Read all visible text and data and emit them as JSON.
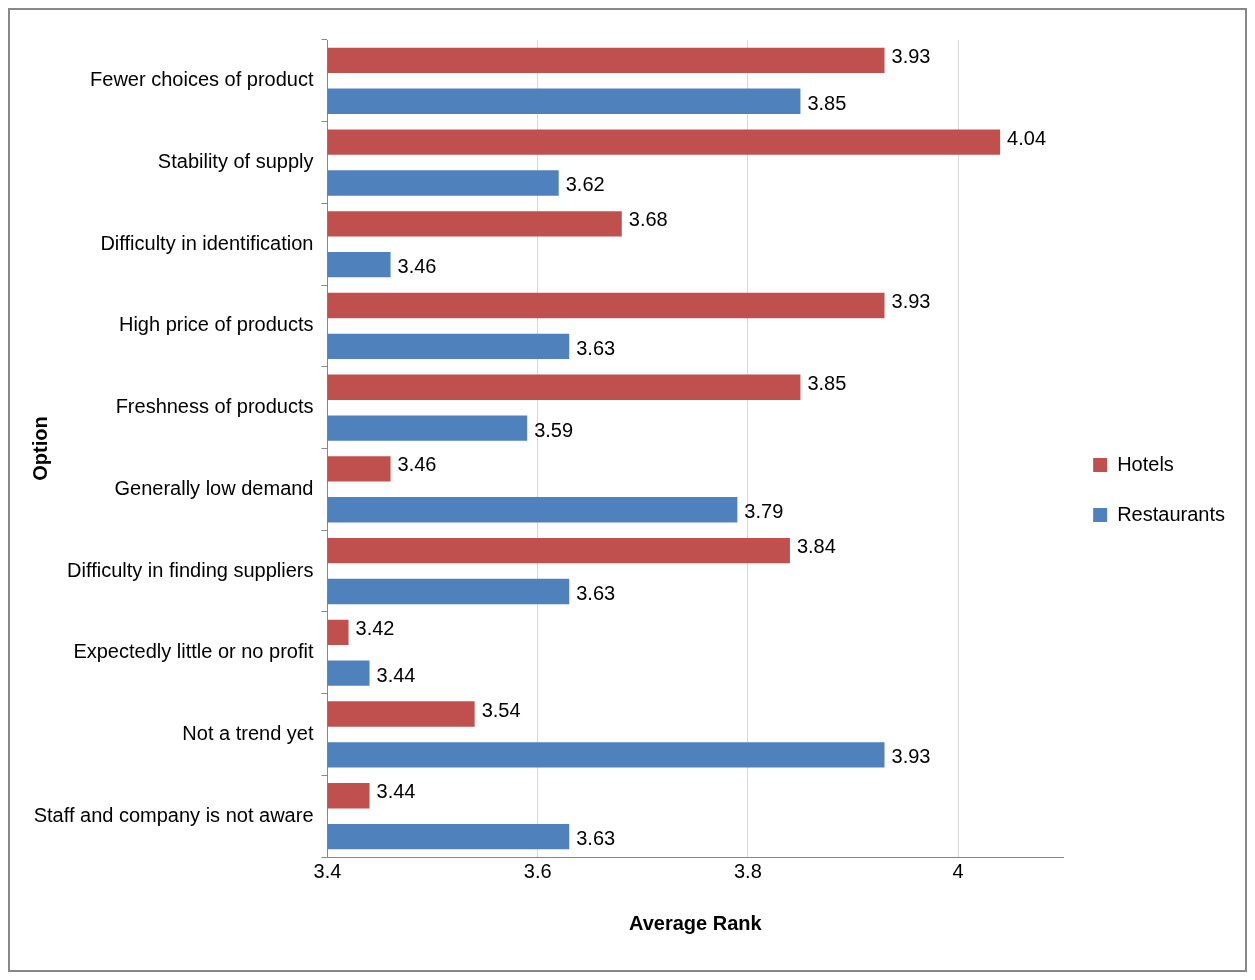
{
  "chart_data": {
    "type": "bar",
    "orientation": "horizontal",
    "xlabel": "Average Rank",
    "ylabel": "Option",
    "categories": [
      "Fewer choices of product",
      "Stability of supply",
      "Difficulty in identification",
      "High price of products",
      "Freshness of products",
      "Generally low demand",
      "Difficulty in finding suppliers",
      "Expectedly little or no profit",
      "Not a trend yet",
      "Staff and company is not aware"
    ],
    "series": [
      {
        "name": "Hotels",
        "color": "#c0504d",
        "values": [
          3.93,
          4.04,
          3.68,
          3.93,
          3.85,
          3.46,
          3.84,
          3.42,
          3.54,
          3.44
        ]
      },
      {
        "name": "Restaurants",
        "color": "#4f81bd",
        "values": [
          3.85,
          3.62,
          3.46,
          3.63,
          3.59,
          3.79,
          3.63,
          3.44,
          3.93,
          3.63
        ]
      }
    ],
    "xlim": [
      3.4,
      4.1
    ],
    "xticks": [
      3.4,
      3.6,
      3.8,
      4
    ],
    "grid": "x",
    "legend": "right",
    "data_labels": true
  }
}
